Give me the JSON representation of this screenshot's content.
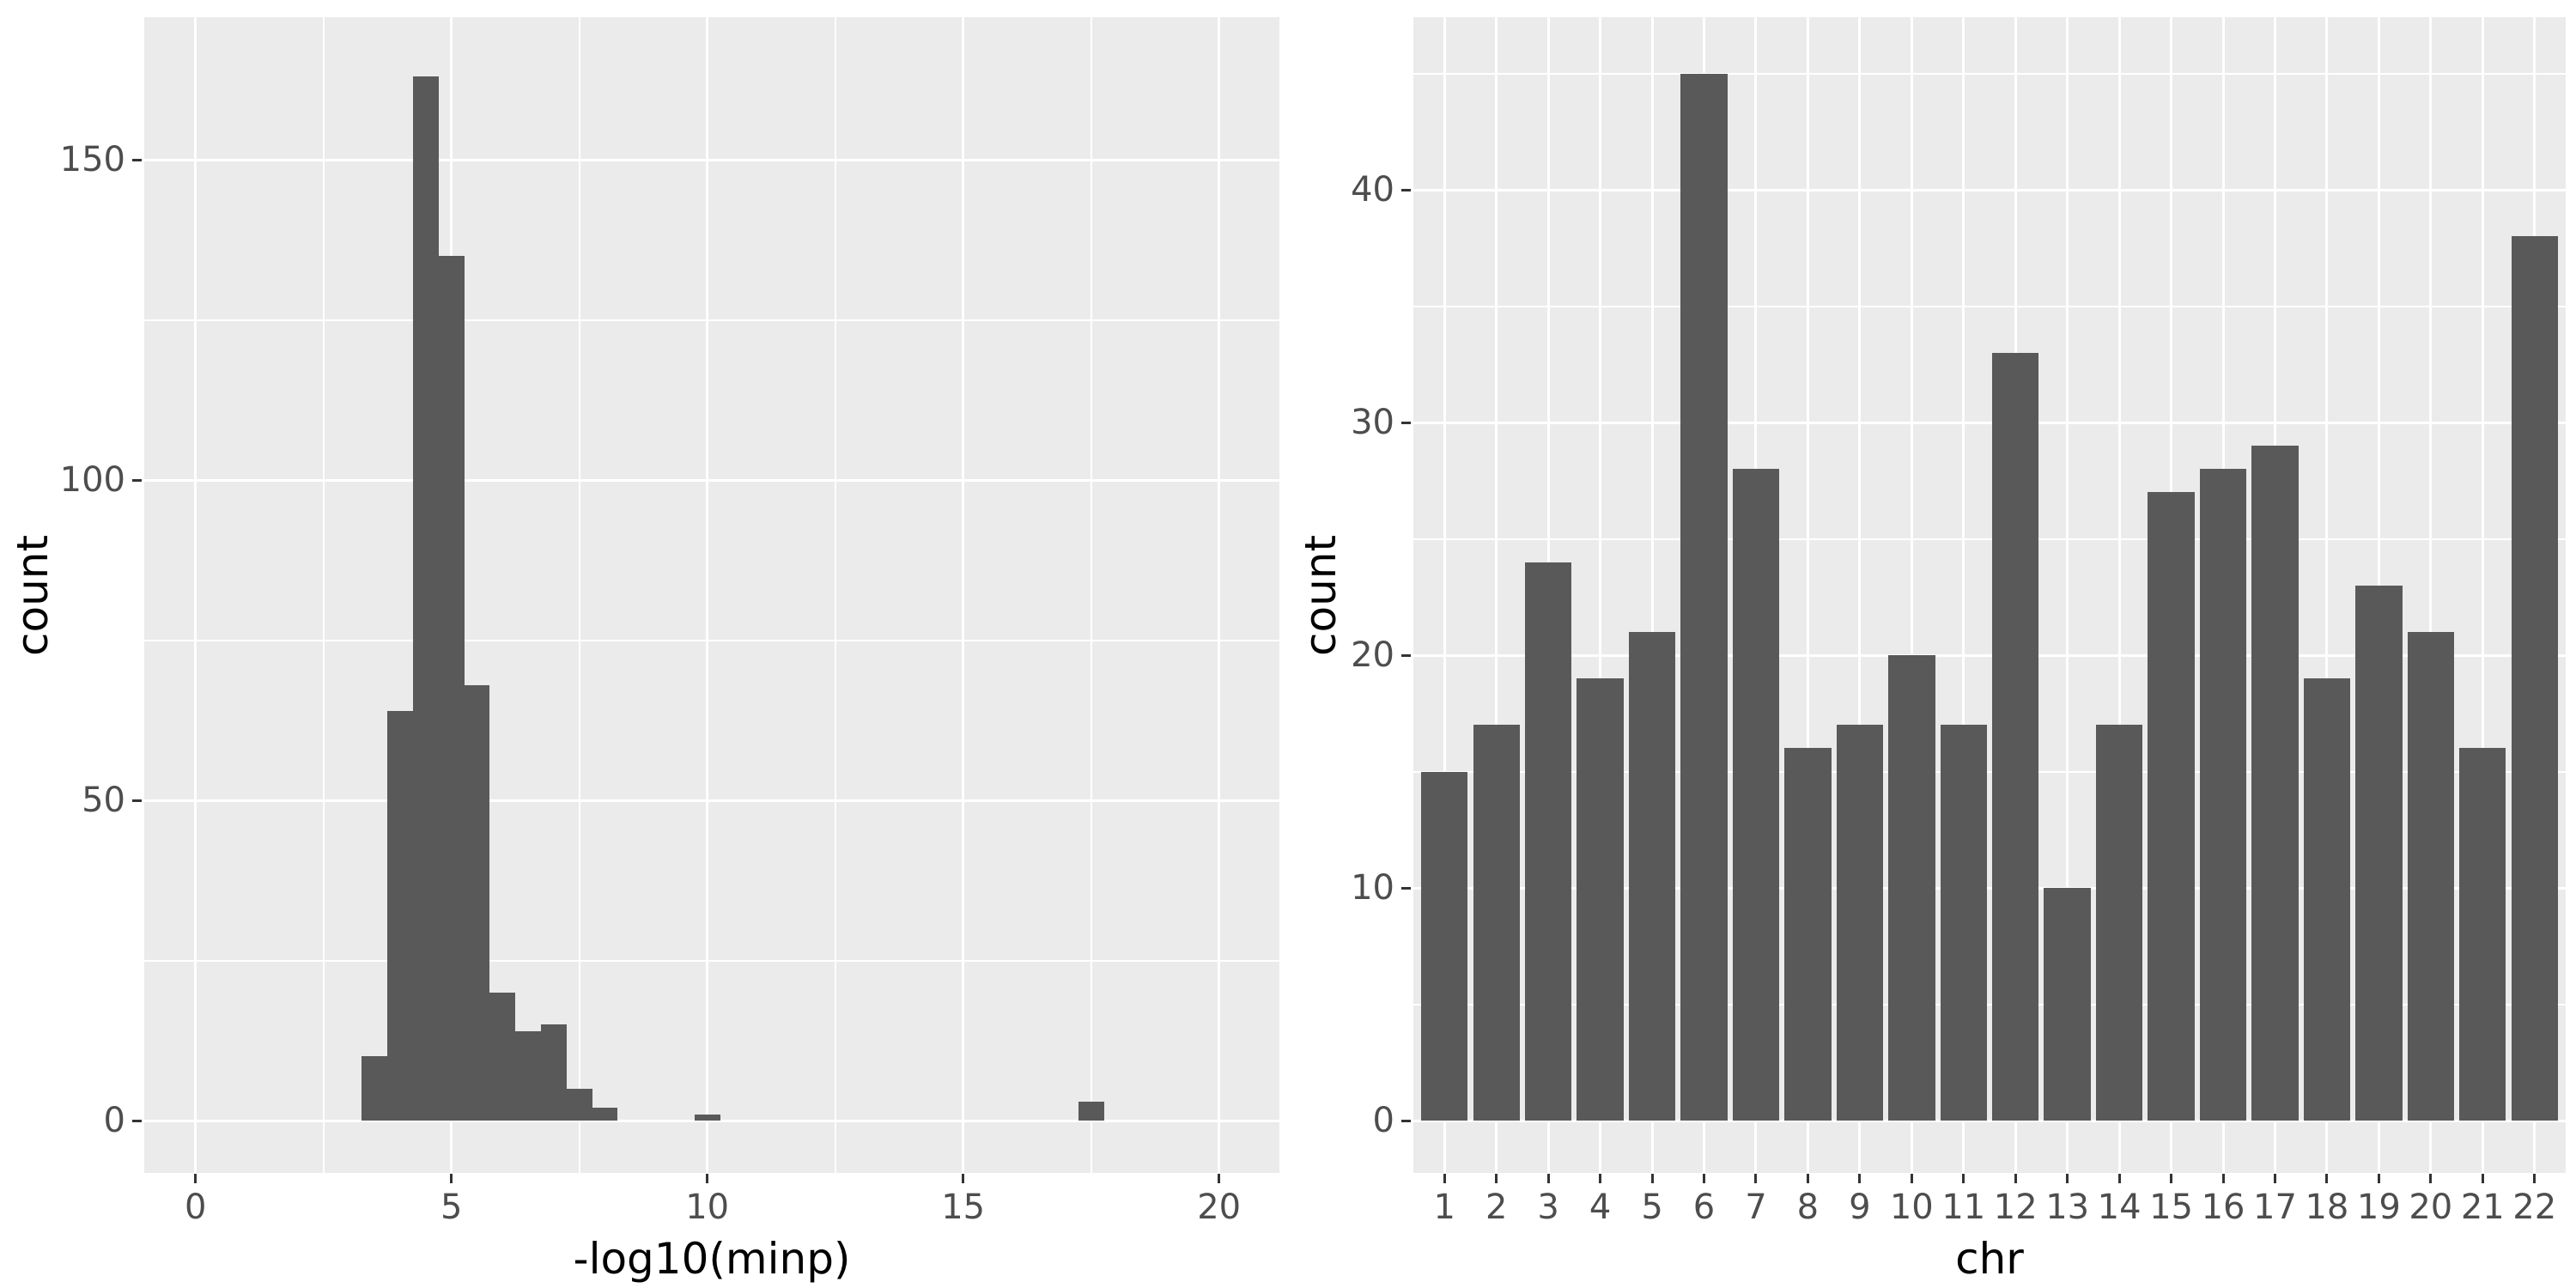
{
  "figures": [
    {
      "x_title": "-log10(minp)",
      "y_title": "count"
    },
    {
      "x_title": "chr",
      "y_title": "count"
    }
  ],
  "colors": {
    "panel_background": "#EBEBEB",
    "bar_fill": "#595959",
    "gridline": "#FFFFFF",
    "tick_text": "#4D4D4D",
    "tick_mark": "#333333",
    "axis_title": "#000000"
  },
  "chart_data": [
    {
      "type": "bar",
      "subtype": "histogram",
      "title": "",
      "xlabel": "-log10(minp)",
      "ylabel": "count",
      "bin_width": 0.5,
      "bin_centers": [
        3.5,
        4.0,
        4.5,
        5.0,
        5.5,
        6.0,
        6.5,
        7.0,
        7.5,
        8.0,
        10.0,
        17.5
      ],
      "values": [
        10,
        64,
        163,
        135,
        68,
        20,
        14,
        15,
        5,
        2,
        1,
        3
      ],
      "x_ticks": [
        0,
        5,
        10,
        15,
        20
      ],
      "x_minor": [
        2.5,
        7.5,
        12.5,
        17.5
      ],
      "y_ticks": [
        0,
        50,
        100,
        150
      ],
      "y_minor": [
        25,
        75,
        125
      ],
      "xlim": [
        -1.0,
        21.2
      ],
      "ylim": [
        -8.2,
        172.3
      ],
      "grid": true,
      "legend": false
    },
    {
      "type": "bar",
      "title": "",
      "xlabel": "chr",
      "ylabel": "count",
      "categories": [
        "1",
        "2",
        "3",
        "4",
        "5",
        "6",
        "7",
        "8",
        "9",
        "10",
        "11",
        "12",
        "13",
        "14",
        "15",
        "16",
        "17",
        "18",
        "19",
        "20",
        "21",
        "22"
      ],
      "values": [
        15,
        17,
        24,
        19,
        21,
        45,
        28,
        16,
        17,
        20,
        17,
        33,
        10,
        17,
        27,
        28,
        29,
        19,
        23,
        21,
        16,
        38
      ],
      "y_ticks": [
        0,
        10,
        20,
        30,
        40
      ],
      "y_minor": [
        5,
        15,
        25,
        35,
        45
      ],
      "ylim": [
        -2.3,
        47.4
      ],
      "grid": true,
      "legend": false
    }
  ]
}
